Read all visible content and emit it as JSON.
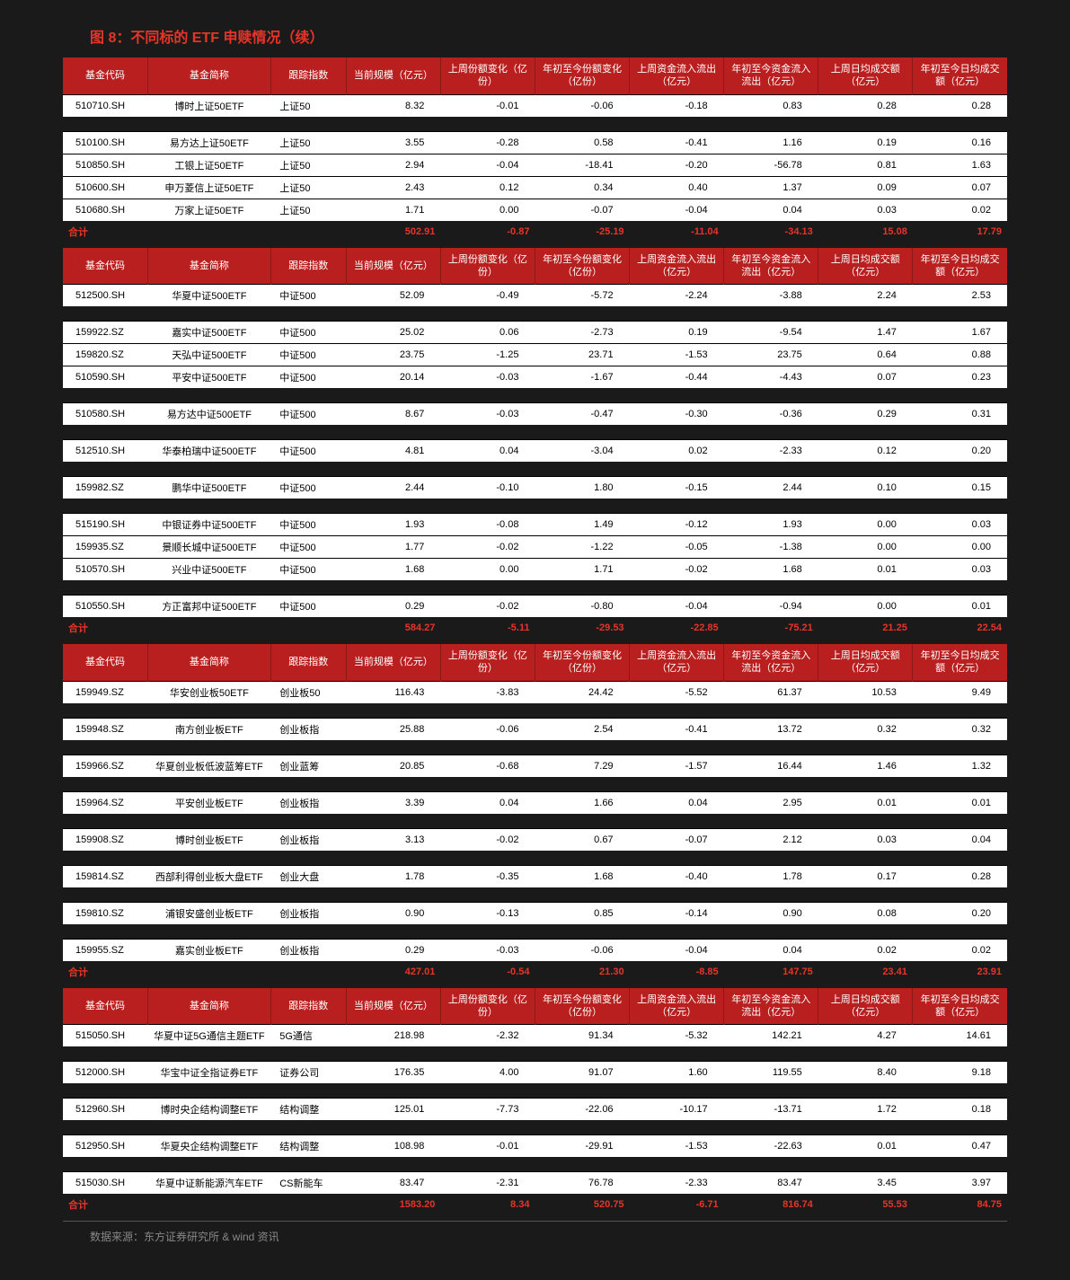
{
  "title": "图 8：不同标的 ETF 申赎情况（续）",
  "source": "数据来源：东方证券研究所 & wind 资讯",
  "columns": [
    "基金代码",
    "基金简称",
    "跟踪指数",
    "当前规模（亿元）",
    "上周份额变化（亿份）",
    "年初至今份额变化（亿份）",
    "上周资金流入流出（亿元）",
    "年初至今资金流入流出（亿元）",
    "上周日均成交额（亿元）",
    "年初至今日均成交额（亿元）"
  ],
  "sections": [
    {
      "rows": [
        [
          "510710.SH",
          "博时上证50ETF",
          "上证50",
          "8.32",
          "-0.01",
          "-0.06",
          "-0.18",
          "0.83",
          "0.28",
          "0.28"
        ],
        "gap",
        [
          "510100.SH",
          "易方达上证50ETF",
          "上证50",
          "3.55",
          "-0.28",
          "0.58",
          "-0.41",
          "1.16",
          "0.19",
          "0.16"
        ],
        [
          "510850.SH",
          "工银上证50ETF",
          "上证50",
          "2.94",
          "-0.04",
          "-18.41",
          "-0.20",
          "-56.78",
          "0.81",
          "1.63"
        ],
        [
          "510600.SH",
          "申万菱信上证50ETF",
          "上证50",
          "2.43",
          "0.12",
          "0.34",
          "0.40",
          "1.37",
          "0.09",
          "0.07"
        ],
        [
          "510680.SH",
          "万家上证50ETF",
          "上证50",
          "1.71",
          "0.00",
          "-0.07",
          "-0.04",
          "0.04",
          "0.03",
          "0.02"
        ]
      ],
      "total": [
        "合计",
        "",
        "",
        "502.91",
        "-0.87",
        "-25.19",
        "-11.04",
        "-34.13",
        "15.08",
        "17.79"
      ]
    },
    {
      "rows": [
        [
          "512500.SH",
          "华夏中证500ETF",
          "中证500",
          "52.09",
          "-0.49",
          "-5.72",
          "-2.24",
          "-3.88",
          "2.24",
          "2.53"
        ],
        "gap",
        [
          "159922.SZ",
          "嘉实中证500ETF",
          "中证500",
          "25.02",
          "0.06",
          "-2.73",
          "0.19",
          "-9.54",
          "1.47",
          "1.67"
        ],
        [
          "159820.SZ",
          "天弘中证500ETF",
          "中证500",
          "23.75",
          "-1.25",
          "23.71",
          "-1.53",
          "23.75",
          "0.64",
          "0.88"
        ],
        [
          "510590.SH",
          "平安中证500ETF",
          "中证500",
          "20.14",
          "-0.03",
          "-1.67",
          "-0.44",
          "-4.43",
          "0.07",
          "0.23"
        ],
        "gap",
        [
          "510580.SH",
          "易方达中证500ETF",
          "中证500",
          "8.67",
          "-0.03",
          "-0.47",
          "-0.30",
          "-0.36",
          "0.29",
          "0.31"
        ],
        "gap",
        [
          "512510.SH",
          "华泰柏瑞中证500ETF",
          "中证500",
          "4.81",
          "0.04",
          "-3.04",
          "0.02",
          "-2.33",
          "0.12",
          "0.20"
        ],
        "gap",
        [
          "159982.SZ",
          "鹏华中证500ETF",
          "中证500",
          "2.44",
          "-0.10",
          "1.80",
          "-0.15",
          "2.44",
          "0.10",
          "0.15"
        ],
        "gap",
        [
          "515190.SH",
          "中银证券中证500ETF",
          "中证500",
          "1.93",
          "-0.08",
          "1.49",
          "-0.12",
          "1.93",
          "0.00",
          "0.03"
        ],
        [
          "159935.SZ",
          "景顺长城中证500ETF",
          "中证500",
          "1.77",
          "-0.02",
          "-1.22",
          "-0.05",
          "-1.38",
          "0.00",
          "0.00"
        ],
        [
          "510570.SH",
          "兴业中证500ETF",
          "中证500",
          "1.68",
          "0.00",
          "1.71",
          "-0.02",
          "1.68",
          "0.01",
          "0.03"
        ],
        "gap",
        [
          "510550.SH",
          "方正富邦中证500ETF",
          "中证500",
          "0.29",
          "-0.02",
          "-0.80",
          "-0.04",
          "-0.94",
          "0.00",
          "0.01"
        ]
      ],
      "total": [
        "合计",
        "",
        "",
        "584.27",
        "-5.11",
        "-29.53",
        "-22.85",
        "-75.21",
        "21.25",
        "22.54"
      ]
    },
    {
      "rows": [
        [
          "159949.SZ",
          "华安创业板50ETF",
          "创业板50",
          "116.43",
          "-3.83",
          "24.42",
          "-5.52",
          "61.37",
          "10.53",
          "9.49"
        ],
        "gap",
        [
          "159948.SZ",
          "南方创业板ETF",
          "创业板指",
          "25.88",
          "-0.06",
          "2.54",
          "-0.41",
          "13.72",
          "0.32",
          "0.32"
        ],
        "gap",
        [
          "159966.SZ",
          "华夏创业板低波蓝筹ETF",
          "创业蓝筹",
          "20.85",
          "-0.68",
          "7.29",
          "-1.57",
          "16.44",
          "1.46",
          "1.32"
        ],
        "gap",
        [
          "159964.SZ",
          "平安创业板ETF",
          "创业板指",
          "3.39",
          "0.04",
          "1.66",
          "0.04",
          "2.95",
          "0.01",
          "0.01"
        ],
        "gap",
        [
          "159908.SZ",
          "博时创业板ETF",
          "创业板指",
          "3.13",
          "-0.02",
          "0.67",
          "-0.07",
          "2.12",
          "0.03",
          "0.04"
        ],
        "gap",
        [
          "159814.SZ",
          "西部利得创业板大盘ETF",
          "创业大盘",
          "1.78",
          "-0.35",
          "1.68",
          "-0.40",
          "1.78",
          "0.17",
          "0.28"
        ],
        "gap",
        [
          "159810.SZ",
          "浦银安盛创业板ETF",
          "创业板指",
          "0.90",
          "-0.13",
          "0.85",
          "-0.14",
          "0.90",
          "0.08",
          "0.20"
        ],
        "gap",
        [
          "159955.SZ",
          "嘉实创业板ETF",
          "创业板指",
          "0.29",
          "-0.03",
          "-0.06",
          "-0.04",
          "0.04",
          "0.02",
          "0.02"
        ]
      ],
      "total": [
        "合计",
        "",
        "",
        "427.01",
        "-0.54",
        "21.30",
        "-8.85",
        "147.75",
        "23.41",
        "23.91"
      ]
    },
    {
      "rows": [
        [
          "515050.SH",
          "华夏中证5G通信主题ETF",
          "5G通信",
          "218.98",
          "-2.32",
          "91.34",
          "-5.32",
          "142.21",
          "4.27",
          "14.61"
        ],
        "gap",
        [
          "512000.SH",
          "华宝中证全指证券ETF",
          "证券公司",
          "176.35",
          "4.00",
          "91.07",
          "1.60",
          "119.55",
          "8.40",
          "9.18"
        ],
        "gap",
        [
          "512960.SH",
          "博时央企结构调整ETF",
          "结构调整",
          "125.01",
          "-7.73",
          "-22.06",
          "-10.17",
          "-13.71",
          "1.72",
          "0.18"
        ],
        "gap",
        [
          "512950.SH",
          "华夏央企结构调整ETF",
          "结构调整",
          "108.98",
          "-0.01",
          "-29.91",
          "-1.53",
          "-22.63",
          "0.01",
          "0.47"
        ],
        "gap",
        [
          "515030.SH",
          "华夏中证新能源汽车ETF",
          "CS新能车",
          "83.47",
          "-2.31",
          "76.78",
          "-2.33",
          "83.47",
          "3.45",
          "3.97"
        ]
      ],
      "total": [
        "合计",
        "",
        "",
        "1583.20",
        "8.34",
        "520.75",
        "-6.71",
        "816.74",
        "55.53",
        "84.75"
      ]
    }
  ]
}
